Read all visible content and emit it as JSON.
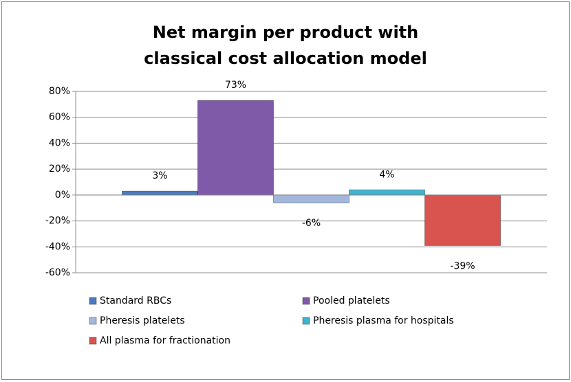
{
  "chart_data": {
    "type": "bar",
    "title": "Net margin per product with classical cost allocation model",
    "series": [
      {
        "name": "Standard RBCs",
        "color": "#4a7bbf",
        "values": [
          3
        ],
        "value_labels": [
          "3%"
        ]
      },
      {
        "name": "Pooled platelets",
        "color": "#7f5aa8",
        "values": [
          73
        ],
        "value_labels": [
          "73%"
        ]
      },
      {
        "name": "Pheresis platelets",
        "color": "#a3b7dd",
        "values": [
          -6
        ],
        "value_labels": [
          "-6%"
        ]
      },
      {
        "name": "Pheresis plasma for hospitals",
        "color": "#3fb3cf",
        "values": [
          4
        ],
        "value_labels": [
          "4%"
        ]
      },
      {
        "name": "All plasma  for fractionation",
        "color": "#d9534f",
        "values": [
          -39
        ],
        "value_labels": [
          "-39%"
        ]
      }
    ],
    "ylim": [
      -60,
      80
    ],
    "yticks": [
      {
        "value": -60,
        "label": "-60%"
      },
      {
        "value": -40,
        "label": "-40%"
      },
      {
        "value": -20,
        "label": "-20%"
      },
      {
        "value": 0,
        "label": "0%"
      },
      {
        "value": 20,
        "label": "20%"
      },
      {
        "value": 40,
        "label": "40%"
      },
      {
        "value": 60,
        "label": "60%"
      },
      {
        "value": 80,
        "label": "80%"
      }
    ],
    "grid": true
  }
}
